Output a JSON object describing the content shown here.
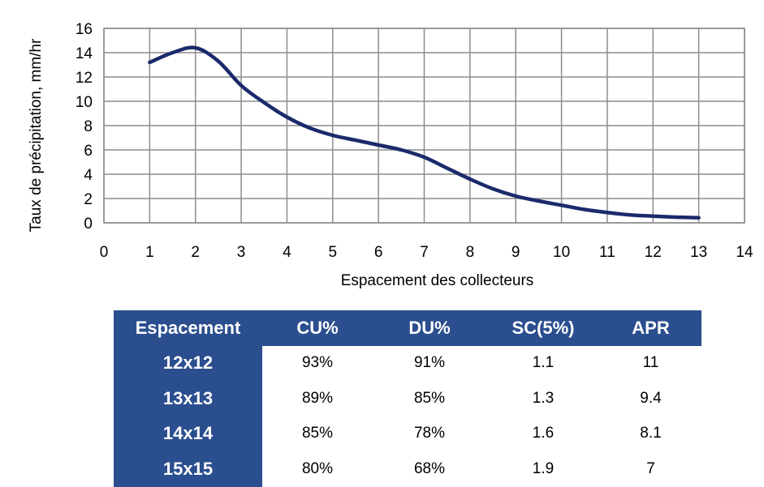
{
  "chart_data": {
    "type": "line",
    "title": "",
    "xlabel": "Espacement des collecteurs",
    "ylabel": "Taux de précipitation, mm/hr",
    "xlim": [
      0,
      14
    ],
    "ylim": [
      0,
      16
    ],
    "xticks": [
      "0",
      "1",
      "2",
      "3",
      "4",
      "5",
      "6",
      "7",
      "8",
      "9",
      "10",
      "11",
      "12",
      "13",
      "14"
    ],
    "yticks": [
      "0",
      "2",
      "4",
      "6",
      "8",
      "10",
      "12",
      "14",
      "16"
    ],
    "grid": true,
    "legend": "none",
    "line_color": "#1b2a6b",
    "series": [
      {
        "x": [
          1,
          1.5,
          2,
          2.5,
          3,
          3.5,
          4,
          4.5,
          5,
          5.5,
          6,
          6.5,
          7,
          7.5,
          8,
          8.5,
          9,
          9.5,
          10,
          10.5,
          11,
          11.5,
          12,
          12.5,
          13
        ],
        "values": [
          13.2,
          14.0,
          14.4,
          13.3,
          11.3,
          9.9,
          8.7,
          7.8,
          7.2,
          6.8,
          6.4,
          6.0,
          5.4,
          4.5,
          3.6,
          2.8,
          2.2,
          1.8,
          1.45,
          1.1,
          0.85,
          0.65,
          0.55,
          0.47,
          0.42
        ]
      }
    ]
  },
  "table": {
    "headers": [
      "Espacement",
      "CU%",
      "DU%",
      "SC(5%)",
      "APR"
    ],
    "rows": [
      [
        "12x12",
        "93%",
        "91%",
        "1.1",
        "11"
      ],
      [
        "13x13",
        "89%",
        "85%",
        "1.3",
        "9.4"
      ],
      [
        "14x14",
        "85%",
        "78%",
        "1.6",
        "8.1"
      ],
      [
        "15x15",
        "80%",
        "68%",
        "1.9",
        "7"
      ]
    ],
    "header_color": "#2b4e8f"
  }
}
